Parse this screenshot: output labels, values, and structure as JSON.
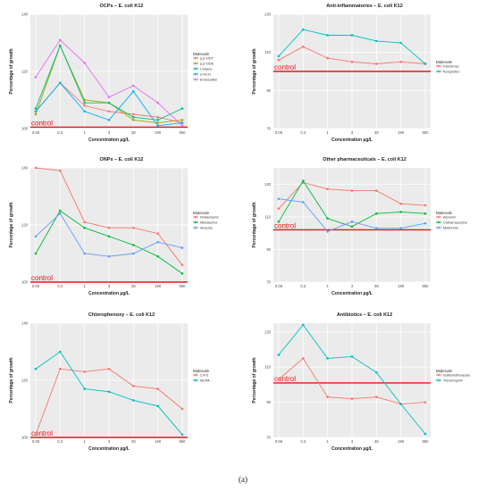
{
  "figure_label": "(a)",
  "chart_data": [
    {
      "type": "line",
      "title": "OCPs – E. coli K12",
      "xlabel": "Concentration µg/L",
      "ylabel": "Percentage of growth",
      "categories": [
        "0.06",
        "0.3",
        "1",
        "3",
        "38",
        "190",
        "950"
      ],
      "ylim": [
        100,
        140
      ],
      "yticks": [
        100,
        120,
        140
      ],
      "control_value": 100.5,
      "control_label": "control",
      "legend_title": "Molecule",
      "legend_position": "right",
      "grid": true,
      "series": [
        {
          "name": "p,p'-DDT",
          "color": "#f8766d",
          "values": [
            106,
            116,
            108,
            106,
            105,
            104,
            102
          ]
        },
        {
          "name": "p,p'-DDE",
          "color": "#a3a500",
          "values": [
            105,
            129,
            110,
            109,
            103,
            102,
            103
          ]
        },
        {
          "name": "Lindane",
          "color": "#00bf7d",
          "values": [
            107,
            129,
            109,
            109,
            104,
            103,
            107
          ]
        },
        {
          "name": "α-HCH",
          "color": "#00b0f6",
          "values": [
            106,
            116,
            106,
            103,
            113,
            101,
            102
          ]
        },
        {
          "name": "Endosulfan",
          "color": "#e76bf3",
          "values": [
            118,
            131,
            123,
            111,
            115,
            109,
            101
          ]
        }
      ]
    },
    {
      "type": "line",
      "title": "Anti-inflammatories – E. coli K12",
      "xlabel": "Concentration µg/L",
      "ylabel": "Percentage of growth",
      "categories": [
        "0.06",
        "0.3",
        "1",
        "3",
        "38",
        "190",
        "950"
      ],
      "ylim": [
        70,
        130
      ],
      "yticks": [
        70,
        90,
        110,
        130
      ],
      "control_value": 100,
      "control_label": "control",
      "legend_title": "Molecule",
      "legend_position": "right",
      "grid": true,
      "series": [
        {
          "name": "Diclofenac",
          "color": "#f8766d",
          "values": [
            106,
            113,
            107,
            105,
            104,
            105,
            104
          ]
        },
        {
          "name": "Ketoprofen",
          "color": "#00bfc4",
          "values": [
            108,
            122,
            119,
            119,
            116,
            115,
            104
          ]
        }
      ]
    },
    {
      "type": "line",
      "title": "ONPs – E. coli K12",
      "xlabel": "Concentration µg/L",
      "ylabel": "Percentage of growth",
      "categories": [
        "0.06",
        "0.3",
        "1",
        "3",
        "38",
        "190",
        "950"
      ],
      "ylim": [
        100,
        140
      ],
      "yticks": [
        100,
        120,
        140
      ],
      "control_value": 100,
      "control_label": "control",
      "legend_title": "Molecule",
      "legend_position": "right",
      "grid": true,
      "series": [
        {
          "name": "Imidacloprid",
          "color": "#f8766d",
          "values": [
            140,
            139,
            121,
            119,
            119,
            117,
            106
          ]
        },
        {
          "name": "Metolachlor",
          "color": "#00ba38",
          "values": [
            110,
            125,
            119,
            116,
            113,
            109,
            103
          ]
        },
        {
          "name": "Atrazine",
          "color": "#619cff",
          "values": [
            116,
            124,
            110,
            109,
            110,
            114,
            112
          ]
        }
      ]
    },
    {
      "type": "line",
      "title": "Other pharmaceuticals – E. coli K12",
      "xlabel": "Concentration µg/L",
      "ylabel": "Percentage of growth",
      "categories": [
        "0.06",
        "0.3",
        "1",
        "3",
        "38",
        "190",
        "950"
      ],
      "ylim": [
        70,
        140
      ],
      "yticks": [
        70,
        90,
        110,
        130
      ],
      "control_value": 102,
      "control_label": "control",
      "legend_title": "Molecule",
      "legend_position": "right",
      "grid": true,
      "series": [
        {
          "name": "Atenolol",
          "color": "#f8766d",
          "values": [
            115,
            131,
            127,
            126,
            126,
            118,
            117
          ]
        },
        {
          "name": "Carbamazepine",
          "color": "#00ba38",
          "values": [
            107,
            132,
            109,
            104,
            112,
            113,
            112
          ]
        },
        {
          "name": "Metformin",
          "color": "#619cff",
          "values": [
            121,
            119,
            101,
            107,
            103,
            103,
            106
          ]
        }
      ]
    },
    {
      "type": "line",
      "title": "Chlorophenoxy – E. coli K12",
      "xlabel": "Concentration µg/L",
      "ylabel": "Percentage of growth",
      "categories": [
        "0.06",
        "0.3",
        "1",
        "3",
        "38",
        "190",
        "950"
      ],
      "ylim": [
        100,
        140
      ],
      "yticks": [
        100,
        120,
        140
      ],
      "control_value": 100,
      "control_label": "control",
      "legend_title": "Molecule",
      "legend_position": "right",
      "grid": true,
      "series": [
        {
          "name": "2,4-D",
          "color": "#f8766d",
          "values": [
            101,
            124,
            123,
            124,
            118,
            117,
            110
          ]
        },
        {
          "name": "MCPA",
          "color": "#00bfc4",
          "values": [
            124,
            130,
            117,
            116,
            113,
            111,
            101
          ]
        }
      ]
    },
    {
      "type": "line",
      "title": "Antibiotics – E. coli K12",
      "xlabel": "Concentration µg/L",
      "ylabel": "Percentage of growth",
      "categories": [
        "0.06",
        "0.3",
        "1",
        "3",
        "38",
        "190",
        "950"
      ],
      "ylim": [
        70,
        135
      ],
      "yticks": [
        70,
        90,
        110,
        130
      ],
      "control_value": 101,
      "control_label": "control",
      "legend_title": "Molecule",
      "legend_position": "right",
      "grid": true,
      "series": [
        {
          "name": "Sulfamethoxazole",
          "color": "#f8766d",
          "values": [
            103,
            115,
            93,
            92,
            93,
            89,
            90
          ]
        },
        {
          "name": "Trimethoprim",
          "color": "#00bfc4",
          "values": [
            117,
            134,
            115,
            116,
            107,
            89,
            72
          ]
        }
      ]
    }
  ]
}
